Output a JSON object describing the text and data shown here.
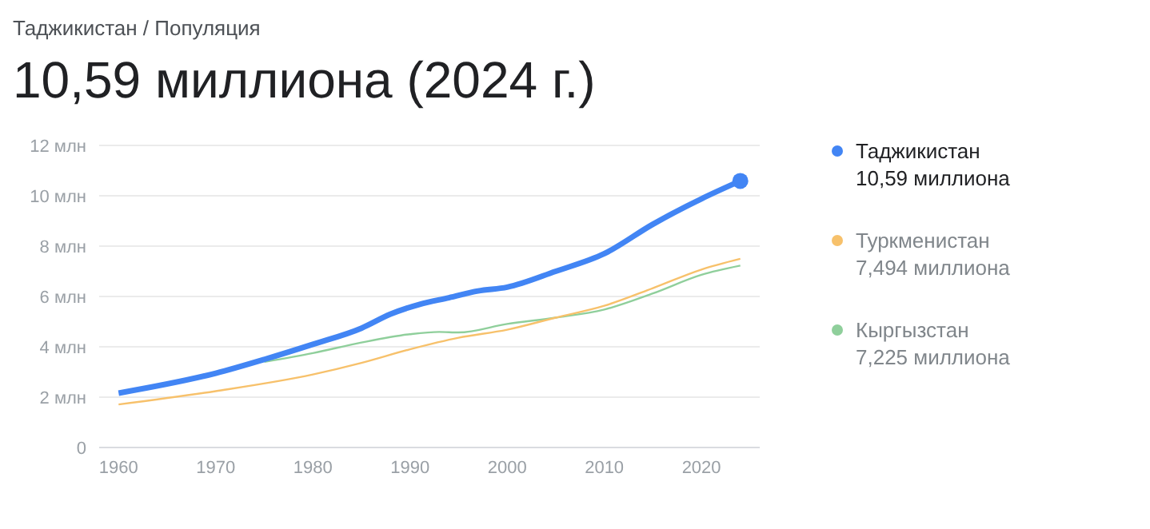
{
  "chart_data": {
    "type": "line",
    "subtitle": "Таджикистан / Популяция",
    "title": "10,59 миллиона (2024 г.)",
    "annotations": [
      "10,59 миллиона",
      "7,494 миллиона",
      "7,225 миллиона"
    ],
    "series": [
      {
        "name": "Таджикистан",
        "color": "#4285f4",
        "x": [
          1960,
          1970,
          1975,
          1980,
          1985,
          1988,
          1991,
          1994,
          1997,
          2000,
          2005,
          2010,
          2015,
          2020,
          2024
        ],
        "values": [
          2.16,
          2.95,
          3.5,
          4.1,
          4.74,
          5.3,
          5.69,
          5.95,
          6.22,
          6.37,
          7.0,
          7.7,
          8.87,
          9.88,
          10.59
        ]
      },
      {
        "name": "Туркменистан",
        "color": "#f7c16b",
        "x": [
          1960,
          1970,
          1980,
          1985,
          1990,
          1995,
          2000,
          2005,
          2010,
          2015,
          2020,
          2024
        ],
        "values": [
          1.71,
          2.24,
          2.9,
          3.36,
          3.9,
          4.36,
          4.68,
          5.16,
          5.63,
          6.33,
          7.07,
          7.494
        ]
      },
      {
        "name": "Кыргызстан",
        "color": "#8fcf9b",
        "x": [
          1975,
          1980,
          1985,
          1990,
          1993,
          1995,
          2000,
          2005,
          2010,
          2015,
          2020,
          2024
        ],
        "values": [
          3.4,
          3.75,
          4.17,
          4.5,
          4.59,
          4.57,
          4.91,
          5.16,
          5.48,
          6.12,
          6.86,
          7.225
        ]
      }
    ],
    "xlim": [
      1958,
      2026
    ],
    "xticks": [
      1960,
      1970,
      1980,
      1990,
      2000,
      2010,
      2020
    ],
    "ylim": [
      0,
      12
    ],
    "yticks": [
      {
        "value": 0,
        "label": "0"
      },
      {
        "value": 2,
        "label": "2 млн"
      },
      {
        "value": 4,
        "label": "4 млн"
      },
      {
        "value": 6,
        "label": "6 млн"
      },
      {
        "value": 8,
        "label": "8 млн"
      },
      {
        "value": 10,
        "label": "10 млн"
      },
      {
        "value": 12,
        "label": "12 млн"
      }
    ],
    "grid": "y",
    "legend": "right",
    "marker": "none",
    "line_style": "solid"
  }
}
